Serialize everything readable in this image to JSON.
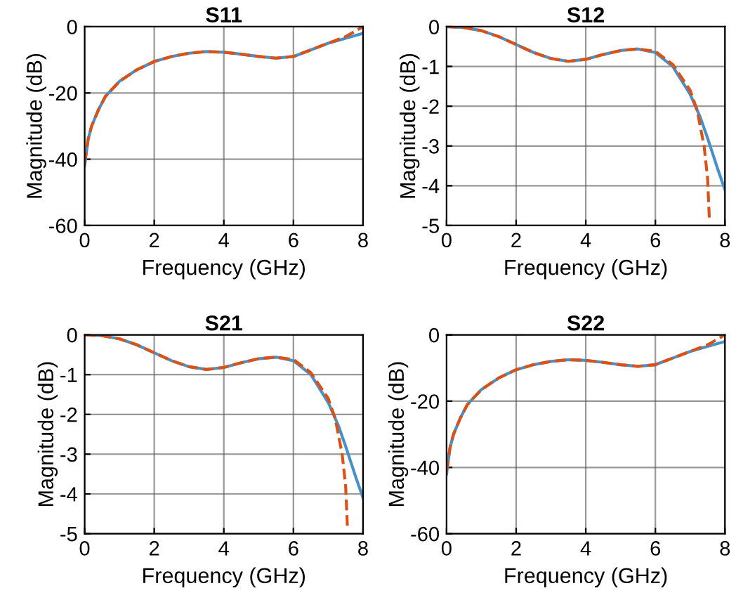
{
  "chart_data": [
    {
      "type": "line",
      "title": "S11",
      "xlabel": "Frequency (GHz)",
      "ylabel": "Magnitude (dB)",
      "xlim": [
        0,
        8
      ],
      "ylim": [
        -60,
        0
      ],
      "xticks": [
        0,
        2,
        4,
        6,
        8
      ],
      "yticks": [
        -60,
        -40,
        -20,
        0
      ],
      "grid": true,
      "series": [
        {
          "color": "#4a90c8",
          "line_style": "solid",
          "x": [
            0,
            0.1,
            0.2,
            0.4,
            0.6,
            1,
            1.5,
            2,
            2.5,
            3,
            3.5,
            4,
            4.5,
            5,
            5.5,
            6,
            6.5,
            7,
            7.5,
            8
          ],
          "values": [
            -42,
            -34,
            -30,
            -25,
            -21,
            -16.5,
            -13,
            -10.5,
            -9,
            -8,
            -7.5,
            -7.7,
            -8.3,
            -9,
            -9.5,
            -9,
            -7,
            -5,
            -3.5,
            -2
          ]
        },
        {
          "color": "#d95319",
          "line_style": "dashed",
          "x": [
            0,
            0.1,
            0.2,
            0.4,
            0.6,
            1,
            1.5,
            2,
            2.5,
            3,
            3.5,
            4,
            4.5,
            5,
            5.5,
            6,
            6.5,
            7,
            7.5,
            7.8,
            8
          ],
          "values": [
            -41,
            -34,
            -30,
            -25,
            -21,
            -16.5,
            -13,
            -10.5,
            -9,
            -8,
            -7.5,
            -7.7,
            -8.3,
            -9,
            -9.5,
            -9,
            -7,
            -5,
            -3,
            -1.2,
            0
          ]
        }
      ]
    },
    {
      "type": "line",
      "title": "S12",
      "xlabel": "Frequency (GHz)",
      "ylabel": "Magnitude (dB)",
      "xlim": [
        0,
        8
      ],
      "ylim": [
        -5,
        0
      ],
      "xticks": [
        0,
        2,
        4,
        6,
        8
      ],
      "yticks": [
        -5,
        -4,
        -3,
        -2,
        -1,
        0
      ],
      "grid": true,
      "series": [
        {
          "color": "#4a90c8",
          "line_style": "solid",
          "x": [
            0,
            0.5,
            1,
            1.5,
            2,
            2.5,
            3,
            3.5,
            4,
            4.5,
            5,
            5.5,
            6,
            6.5,
            7,
            7.3,
            7.5,
            7.8,
            8
          ],
          "values": [
            0,
            -0.02,
            -0.1,
            -0.25,
            -0.45,
            -0.65,
            -0.8,
            -0.87,
            -0.82,
            -0.7,
            -0.6,
            -0.56,
            -0.65,
            -1.0,
            -1.7,
            -2.3,
            -2.8,
            -3.6,
            -4.1
          ]
        },
        {
          "color": "#d95319",
          "line_style": "dashed",
          "x": [
            0,
            0.5,
            1,
            1.5,
            2,
            2.5,
            3,
            3.5,
            4,
            4.5,
            5,
            5.5,
            6,
            6.5,
            7,
            7.2,
            7.4,
            7.5,
            7.55
          ],
          "values": [
            0,
            -0.02,
            -0.1,
            -0.25,
            -0.45,
            -0.65,
            -0.8,
            -0.87,
            -0.82,
            -0.7,
            -0.6,
            -0.56,
            -0.62,
            -0.95,
            -1.6,
            -2.1,
            -3.0,
            -3.8,
            -4.8
          ]
        }
      ]
    },
    {
      "type": "line",
      "title": "S21",
      "xlabel": "Frequency (GHz)",
      "ylabel": "Magnitude (dB)",
      "xlim": [
        0,
        8
      ],
      "ylim": [
        -5,
        0
      ],
      "xticks": [
        0,
        2,
        4,
        6,
        8
      ],
      "yticks": [
        -5,
        -4,
        -3,
        -2,
        -1,
        0
      ],
      "grid": true,
      "series": [
        {
          "color": "#4a90c8",
          "line_style": "solid",
          "x": [
            0,
            0.5,
            1,
            1.5,
            2,
            2.5,
            3,
            3.5,
            4,
            4.5,
            5,
            5.5,
            6,
            6.5,
            7,
            7.3,
            7.5,
            7.8,
            8
          ],
          "values": [
            0,
            -0.02,
            -0.1,
            -0.25,
            -0.45,
            -0.65,
            -0.8,
            -0.87,
            -0.82,
            -0.7,
            -0.6,
            -0.56,
            -0.65,
            -1.0,
            -1.7,
            -2.3,
            -2.8,
            -3.6,
            -4.1
          ]
        },
        {
          "color": "#d95319",
          "line_style": "dashed",
          "x": [
            0,
            0.5,
            1,
            1.5,
            2,
            2.5,
            3,
            3.5,
            4,
            4.5,
            5,
            5.5,
            6,
            6.5,
            7,
            7.2,
            7.4,
            7.5,
            7.55
          ],
          "values": [
            0,
            -0.02,
            -0.1,
            -0.25,
            -0.45,
            -0.65,
            -0.8,
            -0.87,
            -0.82,
            -0.7,
            -0.6,
            -0.56,
            -0.62,
            -0.95,
            -1.6,
            -2.1,
            -3.0,
            -3.8,
            -4.8
          ]
        }
      ]
    },
    {
      "type": "line",
      "title": "S22",
      "xlabel": "Frequency (GHz)",
      "ylabel": "Magnitude (dB)",
      "xlim": [
        0,
        8
      ],
      "ylim": [
        -60,
        0
      ],
      "xticks": [
        0,
        2,
        4,
        6,
        8
      ],
      "yticks": [
        -60,
        -40,
        -20,
        0
      ],
      "grid": true,
      "series": [
        {
          "color": "#4a90c8",
          "line_style": "solid",
          "x": [
            0,
            0.1,
            0.2,
            0.4,
            0.6,
            1,
            1.5,
            2,
            2.5,
            3,
            3.5,
            4,
            4.5,
            5,
            5.5,
            6,
            6.5,
            7,
            7.5,
            8
          ],
          "values": [
            -42,
            -34,
            -30,
            -25,
            -21,
            -16.5,
            -13,
            -10.5,
            -9,
            -8,
            -7.5,
            -7.7,
            -8.3,
            -9,
            -9.5,
            -9,
            -7,
            -5,
            -3.5,
            -2
          ]
        },
        {
          "color": "#d95319",
          "line_style": "dashed",
          "x": [
            0,
            0.1,
            0.2,
            0.4,
            0.6,
            1,
            1.5,
            2,
            2.5,
            3,
            3.5,
            4,
            4.5,
            5,
            5.5,
            6,
            6.5,
            7,
            7.5,
            7.8,
            8
          ],
          "values": [
            -41,
            -34,
            -30,
            -25,
            -21,
            -16.5,
            -13,
            -10.5,
            -9,
            -8,
            -7.5,
            -7.7,
            -8.3,
            -9,
            -9.5,
            -9,
            -7,
            -5,
            -3,
            -1.2,
            0
          ]
        }
      ]
    }
  ]
}
